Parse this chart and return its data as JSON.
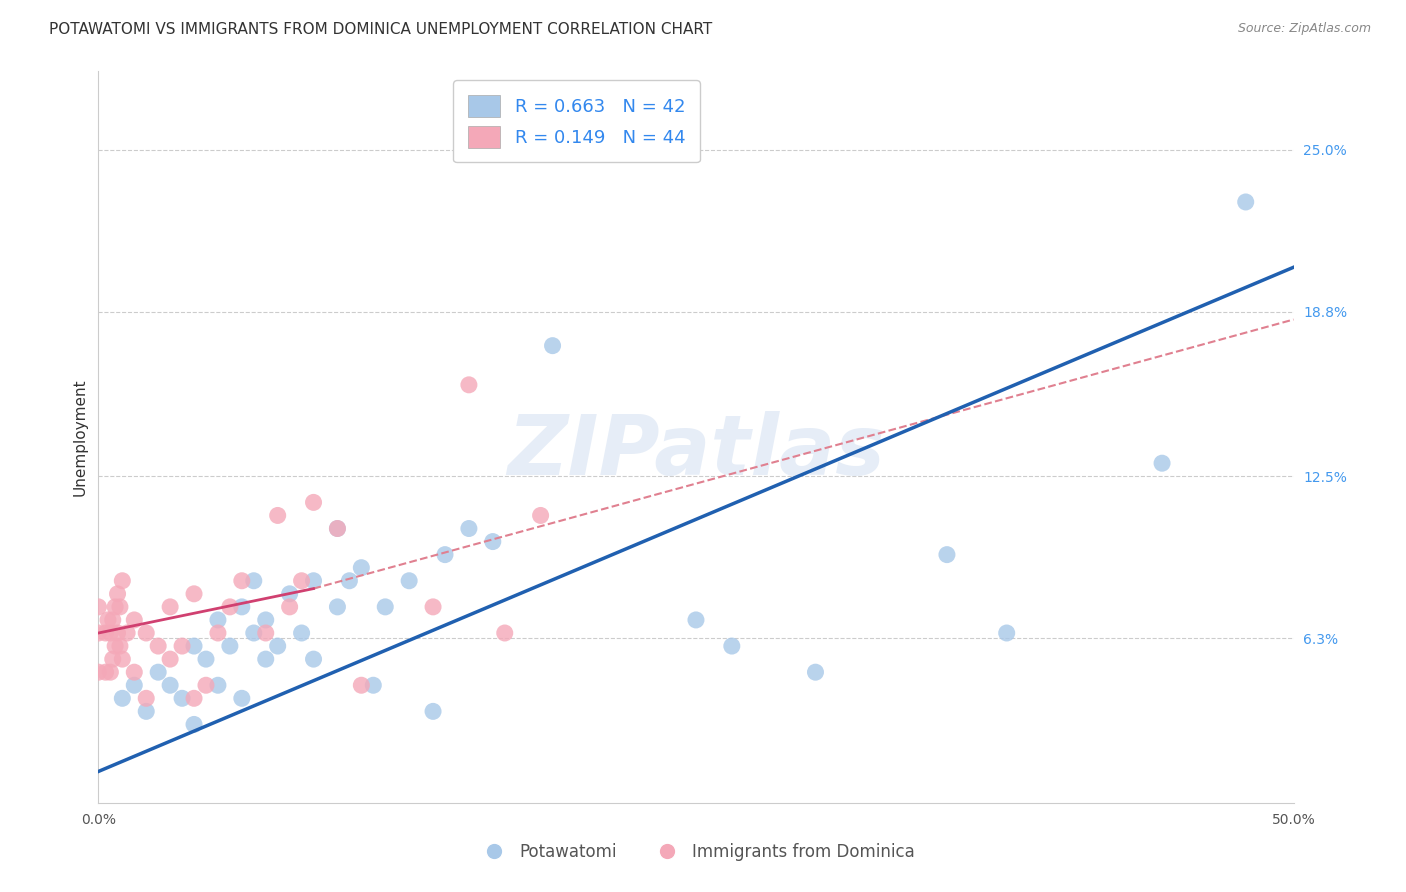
{
  "title": "POTAWATOMI VS IMMIGRANTS FROM DOMINICA UNEMPLOYMENT CORRELATION CHART",
  "source": "Source: ZipAtlas.com",
  "ylabel_label": "Unemployment",
  "x_min": 0.0,
  "x_max": 0.5,
  "y_min": 0.0,
  "y_max": 0.28,
  "x_ticks": [
    0.0,
    0.1,
    0.2,
    0.3,
    0.4,
    0.5
  ],
  "y_tick_labels_right": [
    "25.0%",
    "18.8%",
    "12.5%",
    "6.3%"
  ],
  "y_tick_vals_right": [
    0.25,
    0.188,
    0.125,
    0.063
  ],
  "watermark": "ZIPatlas",
  "legend_text_blue": "R = 0.663   N = 42",
  "legend_text_pink": "R = 0.149   N = 44",
  "scatter_blue_color": "#a8c8e8",
  "scatter_pink_color": "#f4a8b8",
  "line_blue_color": "#2060b0",
  "line_pink_color": "#d04070",
  "line_pink_dash_color": "#e08090",
  "background_color": "#ffffff",
  "grid_color": "#cccccc",
  "blue_scatter_x": [
    0.01,
    0.015,
    0.02,
    0.025,
    0.03,
    0.035,
    0.04,
    0.04,
    0.045,
    0.05,
    0.05,
    0.055,
    0.06,
    0.06,
    0.065,
    0.065,
    0.07,
    0.07,
    0.075,
    0.08,
    0.085,
    0.09,
    0.09,
    0.1,
    0.1,
    0.105,
    0.11,
    0.115,
    0.12,
    0.13,
    0.14,
    0.145,
    0.155,
    0.165,
    0.19,
    0.25,
    0.265,
    0.3,
    0.355,
    0.38,
    0.445,
    0.48
  ],
  "blue_scatter_y": [
    0.04,
    0.045,
    0.035,
    0.05,
    0.045,
    0.04,
    0.03,
    0.06,
    0.055,
    0.045,
    0.07,
    0.06,
    0.04,
    0.075,
    0.065,
    0.085,
    0.055,
    0.07,
    0.06,
    0.08,
    0.065,
    0.055,
    0.085,
    0.075,
    0.105,
    0.085,
    0.09,
    0.045,
    0.075,
    0.085,
    0.035,
    0.095,
    0.105,
    0.1,
    0.175,
    0.07,
    0.06,
    0.05,
    0.095,
    0.065,
    0.13,
    0.23
  ],
  "pink_scatter_x": [
    0.0,
    0.0,
    0.0,
    0.003,
    0.003,
    0.004,
    0.005,
    0.005,
    0.006,
    0.006,
    0.007,
    0.007,
    0.008,
    0.008,
    0.009,
    0.009,
    0.01,
    0.01,
    0.012,
    0.015,
    0.015,
    0.02,
    0.02,
    0.025,
    0.03,
    0.03,
    0.035,
    0.04,
    0.04,
    0.045,
    0.05,
    0.055,
    0.06,
    0.07,
    0.075,
    0.08,
    0.085,
    0.09,
    0.1,
    0.11,
    0.14,
    0.155,
    0.17,
    0.185
  ],
  "pink_scatter_y": [
    0.05,
    0.065,
    0.075,
    0.05,
    0.065,
    0.07,
    0.05,
    0.065,
    0.055,
    0.07,
    0.06,
    0.075,
    0.065,
    0.08,
    0.06,
    0.075,
    0.055,
    0.085,
    0.065,
    0.05,
    0.07,
    0.04,
    0.065,
    0.06,
    0.055,
    0.075,
    0.06,
    0.04,
    0.08,
    0.045,
    0.065,
    0.075,
    0.085,
    0.065,
    0.11,
    0.075,
    0.085,
    0.115,
    0.105,
    0.045,
    0.075,
    0.16,
    0.065,
    0.11
  ],
  "blue_line_x": [
    0.0,
    0.5
  ],
  "blue_line_y": [
    0.012,
    0.205
  ],
  "pink_line_x": [
    0.0,
    0.09
  ],
  "pink_line_y": [
    0.065,
    0.082
  ],
  "pink_dash_line_x": [
    0.09,
    0.5
  ],
  "pink_dash_line_y": [
    0.082,
    0.185
  ],
  "legend_bottom_labels": [
    "Potawatomi",
    "Immigrants from Dominica"
  ],
  "legend_bottom_colors": [
    "#a8c8e8",
    "#f4a8b8"
  ]
}
